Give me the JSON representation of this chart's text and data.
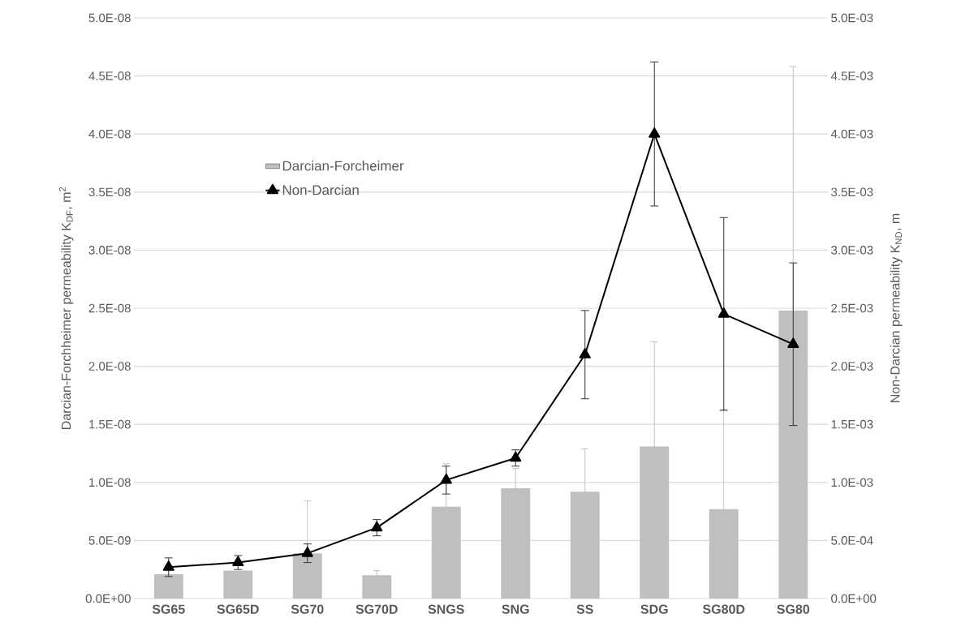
{
  "chart_data": {
    "type": "bar",
    "categories": [
      "SG65",
      "SG65D",
      "SG70",
      "SG70D",
      "SNGS",
      "SNG",
      "SS",
      "SDG",
      "SG80D",
      "SG80"
    ],
    "series": [
      {
        "name": "Darcian-Forcheimer",
        "color": "#bfbfbf",
        "values": [
          2.1e-09,
          2.4e-09,
          3.9e-09,
          2e-09,
          7.9e-09,
          9.5e-09,
          9.2e-09,
          1.31e-08,
          7.7e-09,
          2.48e-08
        ],
        "errors": [
          null,
          null,
          4.5e-09,
          4e-10,
          3.7e-09,
          1.7e-09,
          3.7e-09,
          9e-09,
          8.6e-09,
          2.1e-08
        ]
      },
      {
        "name": "Non-Darcian",
        "type": "line",
        "axis": "y2",
        "color": "#000000",
        "marker": "triangle",
        "values": [
          0.00027,
          0.00031,
          0.00039,
          0.00061,
          0.00102,
          0.00121,
          0.0021,
          0.004,
          0.00245,
          0.00219
        ],
        "errors": [
          8e-05,
          6e-05,
          8e-05,
          7e-05,
          0.00012,
          7e-05,
          0.00038,
          0.00062,
          0.00083,
          0.0007
        ]
      }
    ],
    "ylabel": "Darcian-Forchheimer permeability K$_{DF}$, m$^{2}$",
    "y2label": "Non-Darcian permeability K$_{ND}$, m",
    "ylim": [
      0,
      5e-08
    ],
    "yticks": [
      {
        "value": 0,
        "label": "0.0E+00"
      },
      {
        "value": 5e-09,
        "label": "5.0E-09"
      },
      {
        "value": 1e-08,
        "label": "1.0E-08"
      },
      {
        "value": 1.5e-08,
        "label": "1.5E-08"
      },
      {
        "value": 2e-08,
        "label": "2.0E-08"
      },
      {
        "value": 2.5e-08,
        "label": "2.5E-08"
      },
      {
        "value": 3e-08,
        "label": "3.0E-08"
      },
      {
        "value": 3.5e-08,
        "label": "3.5E-08"
      },
      {
        "value": 4e-08,
        "label": "4.0E-08"
      },
      {
        "value": 4.5e-08,
        "label": "4.5E-08"
      },
      {
        "value": 5e-08,
        "label": "5.0E-08"
      }
    ],
    "y2lim": [
      0,
      0.005
    ],
    "y2ticks": [
      {
        "value": 0,
        "label": "0.0E+00"
      },
      {
        "value": 0.0005,
        "label": "5.0E-04"
      },
      {
        "value": 0.001,
        "label": "1.0E-03"
      },
      {
        "value": 0.0015,
        "label": "1.5E-03"
      },
      {
        "value": 0.002,
        "label": "2.0E-03"
      },
      {
        "value": 0.0025,
        "label": "2.5E-03"
      },
      {
        "value": 0.003,
        "label": "3.0E-03"
      },
      {
        "value": 0.0035,
        "label": "3.5E-03"
      },
      {
        "value": 0.004,
        "label": "4.0E-03"
      },
      {
        "value": 0.0045,
        "label": "4.5E-03"
      },
      {
        "value": 0.005,
        "label": "5.0E-03"
      }
    ],
    "grid": "y",
    "legend": "top left"
  }
}
